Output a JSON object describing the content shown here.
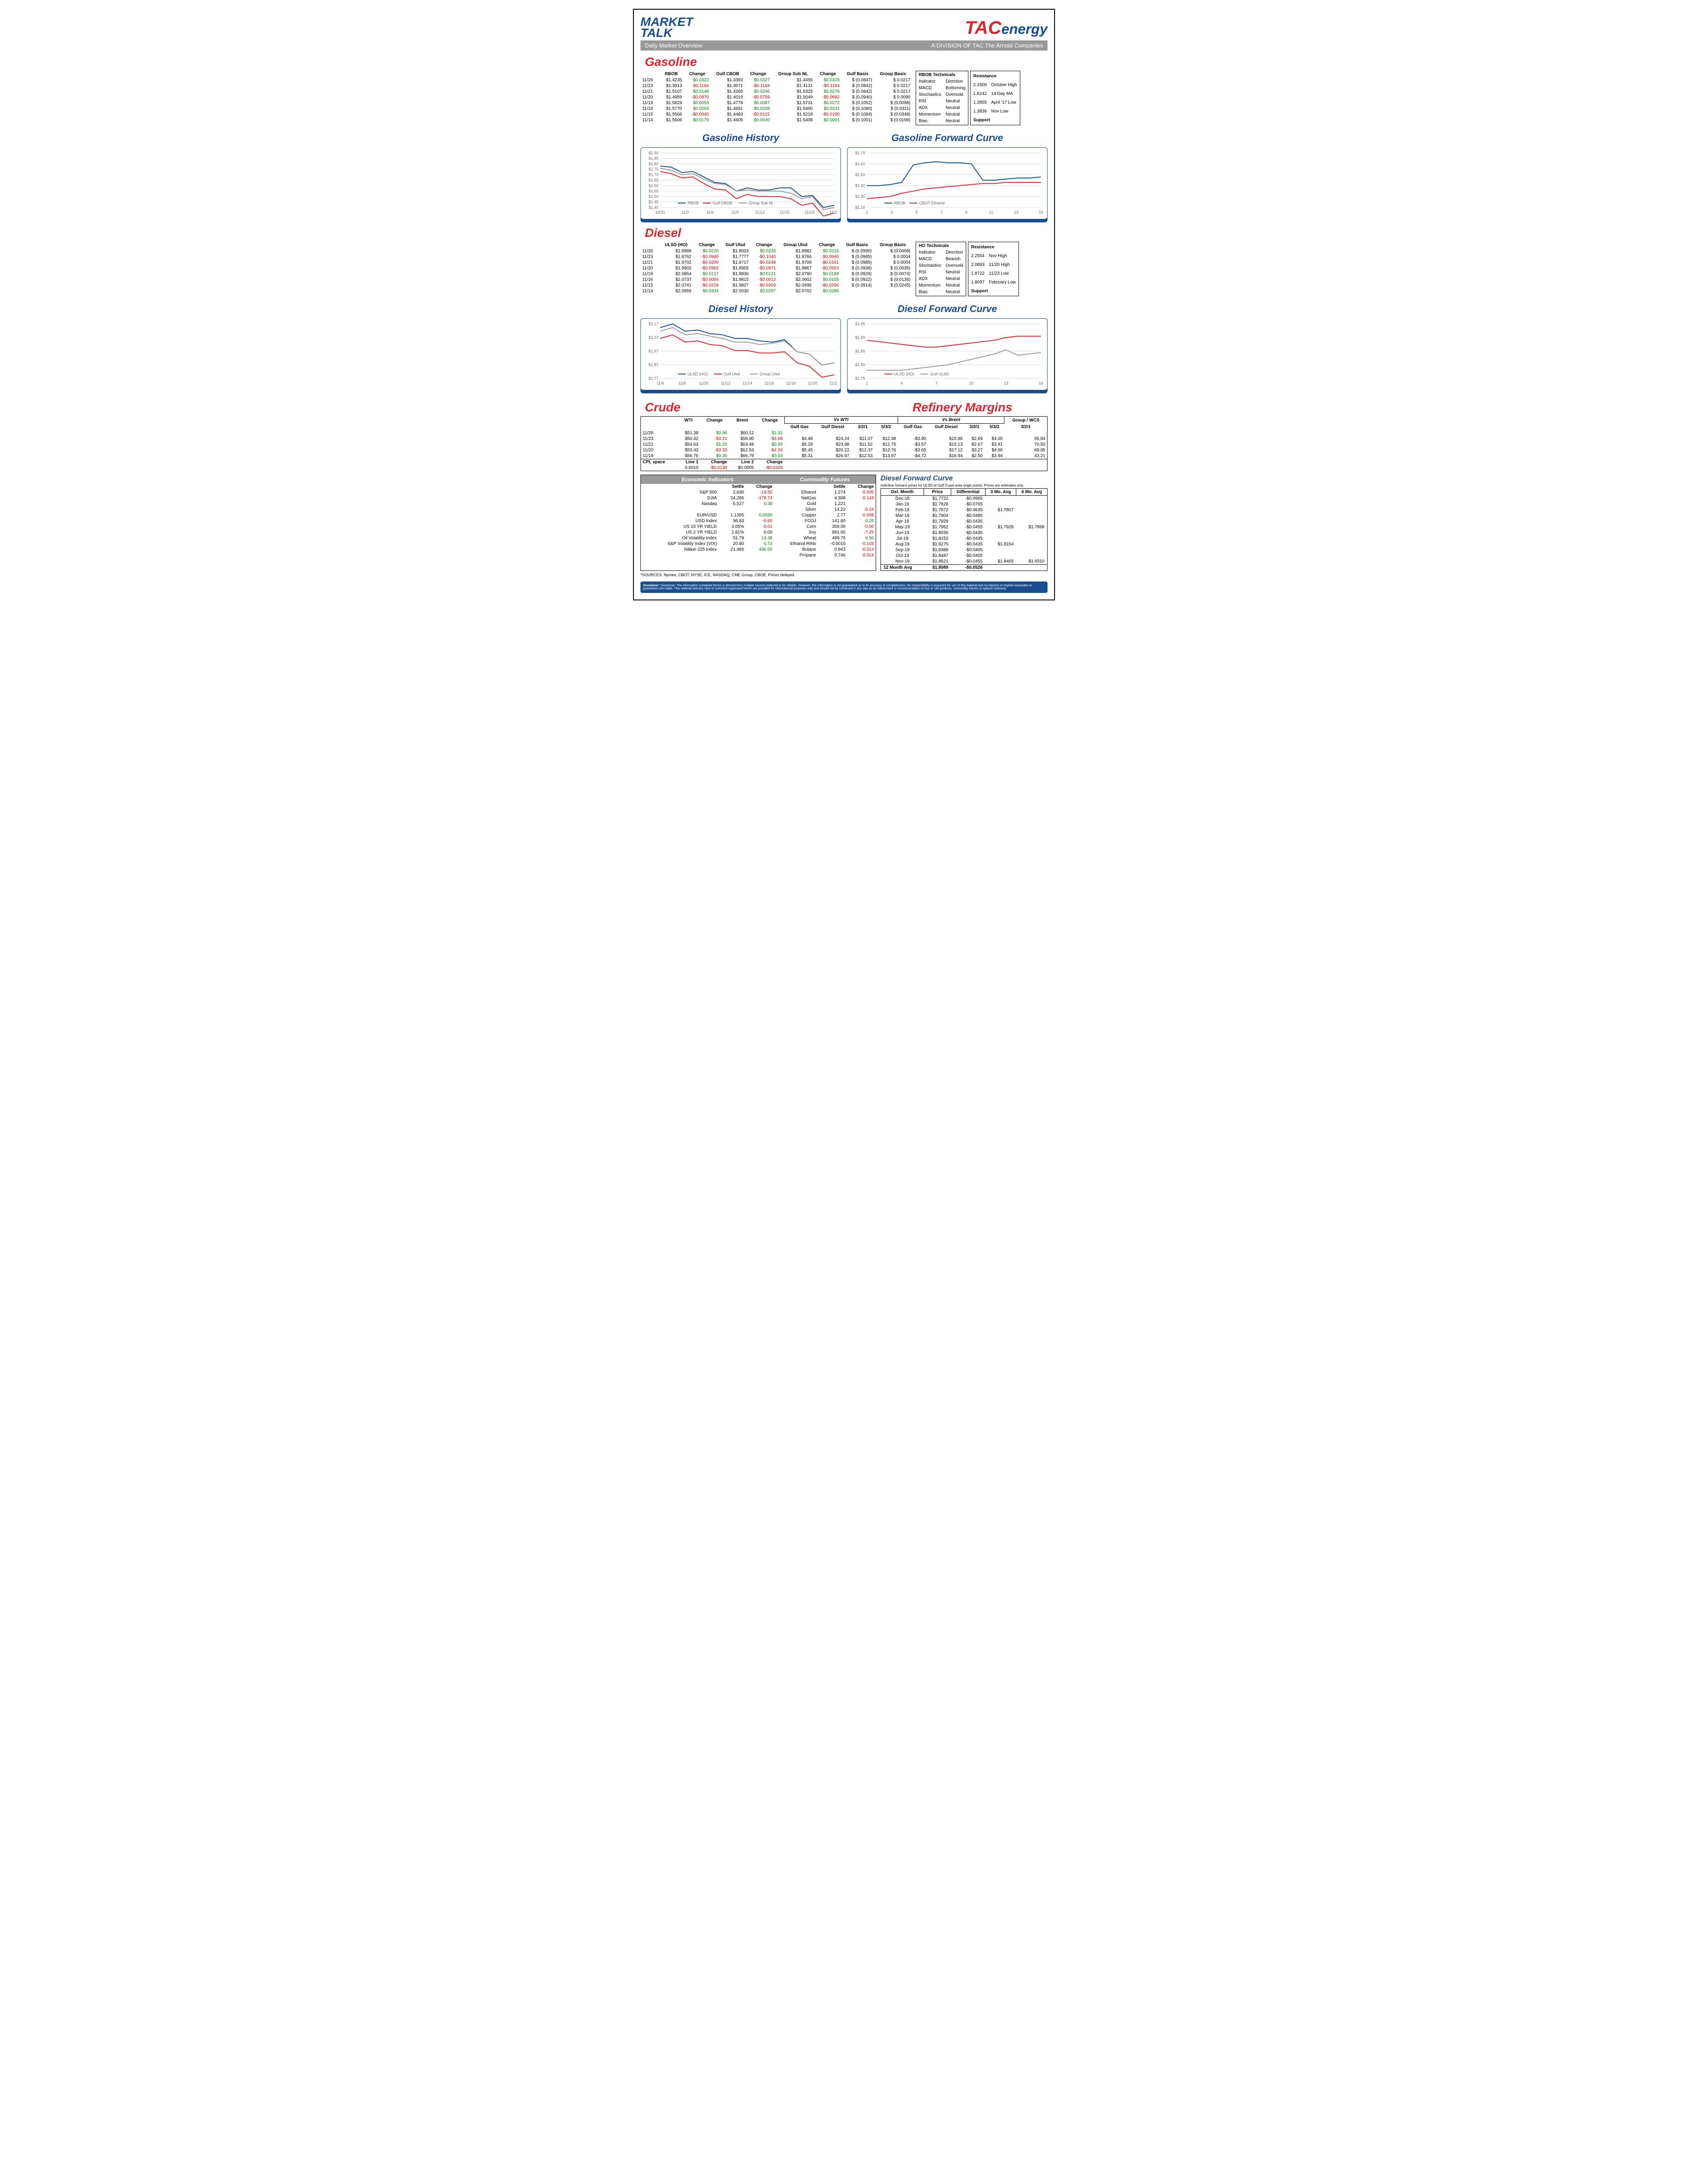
{
  "header": {
    "logo_left_l1": "MARKET",
    "logo_left_l2": "TALK",
    "logo_tac": "TAC",
    "logo_energy": "energy",
    "sub_left": "Daily Market Overview",
    "sub_right": "A DIVISION OF TAC The Arnold Companies"
  },
  "gasoline": {
    "title": "Gasoline",
    "cols": [
      "",
      "RBOB",
      "Change",
      "Gulf CBOB",
      "Change",
      "Group Sub NL",
      "Change",
      "Gulf Basis",
      "Group Basis"
    ],
    "rows": [
      [
        "11/26",
        "$1.4235",
        "$0.0322",
        "$1.3393",
        "$0.0327",
        "$1.4456",
        "$0.0325",
        "$ (0.0847)",
        "$         0.0217"
      ],
      [
        "11/23",
        "$1.3913",
        "-$0.1194",
        "$1.3071",
        "-$0.1194",
        "$1.4131",
        "-$0.1194",
        "$ (0.0842)",
        "$         0.0217"
      ],
      [
        "11/21",
        "$1.5107",
        "$0.0148",
        "$1.4265",
        "$0.0246",
        "$1.5325",
        "$0.0276",
        "$ (0.0842)",
        "$         0.0217"
      ],
      [
        "11/20",
        "$1.4959",
        "-$0.0870",
        "$1.4019",
        "-$0.0759",
        "$1.5049",
        "-$0.0682",
        "$ (0.0940)",
        "$         0.0090"
      ],
      [
        "11/19",
        "$1.5829",
        "$0.0059",
        "$1.4778",
        "$0.0087",
        "$1.5731",
        "$0.0272",
        "$ (0.1052)",
        "$       (0.0098)"
      ],
      [
        "11/16",
        "$1.5770",
        "$0.0204",
        "$1.4691",
        "$0.0208",
        "$1.5460",
        "$0.0241",
        "$ (0.1080)",
        "$       (0.0311)"
      ],
      [
        "11/15",
        "$1.5566",
        "-$0.0040",
        "$1.4483",
        "-$0.0122",
        "$1.5218",
        "-$0.0190",
        "$ (0.1084)",
        "$       (0.0348)"
      ],
      [
        "11/14",
        "$1.5606",
        "$0.0179",
        "$1.4605",
        "$0.0040",
        "$1.5408",
        "$0.0091",
        "$ (0.1001)",
        "$       (0.0198)"
      ]
    ],
    "tech_title": "RBOB Technicals",
    "tech_cols": [
      "Indicator",
      "Direction"
    ],
    "tech_rows": [
      [
        "MACD",
        "Bottoming"
      ],
      [
        "Stochastics",
        "Oversold"
      ],
      [
        "RSI",
        "Neutral"
      ],
      [
        "ADX",
        "Neutral"
      ],
      [
        "Momentum",
        "Neutral"
      ],
      [
        "Bias:",
        "Neutral"
      ]
    ],
    "rs_title": "Resistance",
    "rs_rows": [
      [
        "2.1500",
        "October High"
      ],
      [
        "1.6242",
        "14 Day MA"
      ],
      [
        "1.3955",
        "April '17 Low"
      ],
      [
        "1.3838",
        "Nov Low"
      ]
    ],
    "sp_title": "Support",
    "hist_title": "Gasoline History",
    "fwd_title": "Gasoline Forward Curve",
    "hist_chart": {
      "ylabels": [
        "$1.90",
        "$1.85",
        "$1.80",
        "$1.75",
        "$1.70",
        "$1.65",
        "$1.60",
        "$1.55",
        "$1.50",
        "$1.45",
        "$1.40"
      ],
      "xlabels": [
        "10/31",
        "11/3",
        "11/6",
        "11/9",
        "11/12",
        "11/15",
        "11/18",
        "11/21"
      ],
      "legend": [
        "RBOB",
        "Gulf CBOB",
        "Group Sub NL"
      ],
      "series_blue": [
        1.78,
        1.77,
        1.72,
        1.73,
        1.68,
        1.63,
        1.62,
        1.55,
        1.58,
        1.56,
        1.56,
        1.58,
        1.58,
        1.5,
        1.51,
        1.4,
        1.42
      ],
      "series_red": [
        1.73,
        1.71,
        1.67,
        1.68,
        1.62,
        1.57,
        1.56,
        1.48,
        1.52,
        1.5,
        1.5,
        1.5,
        1.48,
        1.42,
        1.44,
        1.32,
        1.35
      ],
      "series_gray": [
        1.76,
        1.74,
        1.7,
        1.71,
        1.66,
        1.62,
        1.61,
        1.55,
        1.56,
        1.55,
        1.55,
        1.55,
        1.53,
        1.48,
        1.5,
        1.38,
        1.4
      ],
      "ymin": 1.4,
      "ymax": 1.9
    },
    "fwd_chart": {
      "ylabels": [
        "$1.70",
        "$1.60",
        "$1.50",
        "$1.40",
        "$1.30",
        "$1.20"
      ],
      "xlabels": [
        "1",
        "3",
        "5",
        "7",
        "9",
        "11",
        "13",
        "15"
      ],
      "legend": [
        "RBOB",
        "CBOT Ethanol"
      ],
      "series_blue": [
        1.4,
        1.4,
        1.41,
        1.43,
        1.59,
        1.61,
        1.62,
        1.61,
        1.61,
        1.6,
        1.45,
        1.45,
        1.46,
        1.47,
        1.47,
        1.48
      ],
      "series_red": [
        1.28,
        1.29,
        1.3,
        1.33,
        1.35,
        1.37,
        1.38,
        1.39,
        1.4,
        1.41,
        1.42,
        1.42,
        1.43,
        1.43,
        1.43,
        1.43
      ],
      "ymin": 1.2,
      "ymax": 1.7
    }
  },
  "diesel": {
    "title": "Diesel",
    "cols": [
      "",
      "ULSD (HO)",
      "Change",
      "Gulf Ulsd",
      "Change",
      "Group Ulsd",
      "Change",
      "Gulf Basis",
      "Group Basis"
    ],
    "rows": [
      [
        "11/26",
        "$1.8988",
        "$0.0226",
        "$1.8003",
        "$0.0226",
        "$1.8982",
        "$0.0216",
        "$ (0.0990)",
        "$       (0.0008)"
      ],
      [
        "11/23",
        "$1.8762",
        "-$0.0940",
        "$1.7777",
        "-$0.1040",
        "$1.8766",
        "-$0.0940",
        "$ (0.0985)",
        "$         0.0004"
      ],
      [
        "11/21",
        "$1.9702",
        "-$0.0200",
        "$1.8717",
        "-$0.0248",
        "$1.9706",
        "-$0.0161",
        "$ (0.0985)",
        "$         0.0004"
      ],
      [
        "11/20",
        "$1.9902",
        "-$0.0962",
        "$1.8965",
        "-$0.0971",
        "$1.9867",
        "-$0.0923",
        "$ (0.0938)",
        "$       (0.0035)"
      ],
      [
        "11/19",
        "$2.0864",
        "$0.0127",
        "$1.9936",
        "$0.0121",
        "$2.0790",
        "$0.0189",
        "$ (0.0928)",
        "$       (0.0074)"
      ],
      [
        "11/16",
        "$2.0737",
        "-$0.0004",
        "$1.9815",
        "-$0.0012",
        "$2.0602",
        "$0.0105",
        "$ (0.0922)",
        "$       (0.0136)"
      ],
      [
        "11/15",
        "$2.0741",
        "-$0.0218",
        "$1.9827",
        "-$0.0203",
        "$2.0496",
        "-$0.0206",
        "$ (0.0914)",
        "$       (0.0245)"
      ],
      [
        "11/14",
        "$2.0959",
        "$0.0334",
        "$2.0030",
        "$0.0297",
        "$2.0702",
        "$0.0286",
        "",
        ""
      ]
    ],
    "tech_title": "HO Technicals",
    "tech_rows": [
      [
        "MACD",
        "Bearish"
      ],
      [
        "Stochastics",
        "Oversold"
      ],
      [
        "RSI",
        "Neutral"
      ],
      [
        "ADX",
        "Neutral"
      ],
      [
        "Momentum",
        "Neutral"
      ],
      [
        "Bias:",
        "Neutral"
      ]
    ],
    "rs_rows": [
      [
        "2.2554",
        "Nov High"
      ],
      [
        "2.0893",
        "11/20 High"
      ],
      [
        "1.8722",
        "11/23 Low"
      ],
      [
        "1.8097",
        "February Low"
      ]
    ],
    "hist_title": "Diesel History",
    "fwd_title": "Diesel Forward Curve",
    "hist_chart": {
      "ylabels": [
        "$2.17",
        "$2.07",
        "$1.97",
        "$1.87",
        "$1.77"
      ],
      "xlabels": [
        "11/6",
        "11/8",
        "11/10",
        "11/12",
        "11/14",
        "11/16",
        "11/18",
        "11/20",
        "11/22"
      ],
      "legend": [
        "ULSD (HO)",
        "Gulf Ulsd",
        "Group Ulsd"
      ],
      "series_blue": [
        2.19,
        2.22,
        2.16,
        2.17,
        2.14,
        2.13,
        2.1,
        2.1,
        2.08,
        2.07,
        2.09,
        1.99,
        1.97,
        1.88,
        1.9
      ],
      "series_red": [
        2.1,
        2.13,
        2.07,
        2.08,
        2.05,
        2.04,
        2.0,
        2.0,
        1.98,
        1.98,
        1.99,
        1.9,
        1.87,
        1.78,
        1.8
      ],
      "series_gray": [
        2.16,
        2.19,
        2.13,
        2.14,
        2.12,
        2.1,
        2.07,
        2.07,
        2.05,
        2.06,
        2.08,
        1.99,
        1.97,
        1.88,
        1.9
      ],
      "ymin": 1.77,
      "ymax": 2.22
    },
    "fwd_chart": {
      "ylabels": [
        "$1.95",
        "$1.90",
        "$1.85",
        "$1.80",
        "$1.75"
      ],
      "xlabels": [
        "1",
        "4",
        "7",
        "10",
        "13",
        "16"
      ],
      "legend": [
        "ULSD (HO)",
        "Gulf ULSD"
      ],
      "series_red": [
        1.89,
        1.885,
        1.88,
        1.875,
        1.87,
        1.865,
        1.865,
        1.87,
        1.875,
        1.88,
        1.885,
        1.89,
        1.9,
        1.905,
        1.905,
        1.905
      ],
      "series_gray": [
        1.78,
        1.78,
        1.78,
        1.78,
        1.785,
        1.79,
        1.795,
        1.8,
        1.81,
        1.82,
        1.83,
        1.84,
        1.855,
        1.835,
        1.84,
        1.845
      ],
      "ymin": 1.75,
      "ymax": 1.95
    }
  },
  "crude": {
    "title": "Crude",
    "ref_title": "Refinery Margins",
    "cols": [
      "",
      "WTI",
      "Change",
      "Brent",
      "Change"
    ],
    "rows": [
      [
        "11/26",
        "$51.38",
        "$0.96",
        "$60.12",
        "$1.32"
      ],
      [
        "11/23",
        "$50.42",
        "-$4.21",
        "$58.80",
        "-$4.68"
      ],
      [
        "11/21",
        "$54.63",
        "$1.20",
        "$63.48",
        "$0.95"
      ],
      [
        "11/20",
        "$53.43",
        "-$3.33",
        "$62.53",
        "-$4.26"
      ],
      [
        "11/19",
        "$56.76",
        "$0.30",
        "$66.79",
        "$0.03"
      ]
    ],
    "cpl_row": [
      "CPL space",
      "Line 1",
      "Change",
      "Line 2",
      "Change"
    ],
    "cpl_vals": [
      "",
      "0.0010",
      "-$0.0138",
      "$0.0005",
      "-$0.0328"
    ],
    "vs_wti_h": "Vs WTI",
    "vs_brent_h": "Vs Brent",
    "group_wcs": "Group / WCS",
    "ref_cols": [
      "Gulf Gas",
      "Gulf Diesel",
      "3/2/1",
      "5/3/2",
      "Gulf Gas",
      "Gulf Diesel",
      "3/2/1",
      "5/3/2",
      "3/2/1"
    ],
    "ref_rows": [
      [
        "",
        "",
        "",
        "",
        "",
        "",
        "",
        "",
        ""
      ],
      [
        "$4.48",
        "$24.24",
        "$11.07",
        "$12.38",
        "-$3.90",
        "$15.86",
        "$2.69",
        "$4.00",
        "65.84"
      ],
      [
        "$5.28",
        "$23.98",
        "$11.52",
        "$12.76",
        "-$3.57",
        "$15.13",
        "$2.67",
        "$3.91",
        "70.50"
      ],
      [
        "$5.45",
        "$26.22",
        "$12.37",
        "$13.76",
        "-$3.65",
        "$17.12",
        "$3.27",
        "$4.66",
        "69.95"
      ],
      [
        "$5.31",
        "$26.97",
        "$12.53",
        "$13.97",
        "-$4.72",
        "$16.94",
        "$2.50",
        "$3.94",
        "43.21"
      ]
    ]
  },
  "econ": {
    "title": "Economic Indicators",
    "cols": [
      "",
      "Settle",
      "Change"
    ],
    "rows": [
      [
        "S&P 500",
        "2,630",
        "-19.50"
      ],
      [
        "DJIA",
        "24,286",
        "-178.74"
      ],
      [
        "Nasdaq",
        "6,527",
        "0.38"
      ],
      [
        "",
        "",
        ""
      ],
      [
        "EUR/USD",
        "1.1355",
        "0.0030"
      ],
      [
        "USD Index",
        "96.83",
        "-0.60"
      ],
      [
        "US 10 YR YIELD",
        "3.05%",
        "-0.01"
      ],
      [
        "US 2 YR YIELD",
        "2.81%",
        "0.00"
      ],
      [
        "Oil Volatility Index",
        "51.79",
        "13.38"
      ],
      [
        "S&P Volatility Index (VIX)",
        "20.80",
        "0.72"
      ],
      [
        "Nikkei 225 Index",
        "21,485",
        "490.00"
      ]
    ]
  },
  "comm": {
    "title": "Commodity Futures",
    "cols": [
      "",
      "Settle",
      "Change"
    ],
    "rows": [
      [
        "Ethanol",
        "1.274",
        "-0.005"
      ],
      [
        "NatGas",
        "4.308",
        "-0.143"
      ],
      [
        "Gold",
        "1,221",
        ""
      ],
      [
        "Silver",
        "14.22",
        "-0.16"
      ],
      [
        "Copper",
        "2.77",
        "-0.008"
      ],
      [
        "FCOJ",
        "141.60",
        "0.25"
      ],
      [
        "Corn",
        "359.00",
        "-0.50"
      ],
      [
        "Soy",
        "881.00",
        "-7.25"
      ],
      [
        "Wheat",
        "499.75",
        "6.50"
      ],
      [
        "Ethanol RINs",
        "-0.0010",
        "-0.103"
      ],
      [
        "Butane",
        "0.843",
        "-0.014"
      ],
      [
        "Propane",
        "0.746",
        "-0.014"
      ]
    ]
  },
  "dfc": {
    "title": "Diesel Forward Curve",
    "sub": "Indicitive forward prices for ULSD at Gulf Coast area origin points.  Prices are estimates only.",
    "cols": [
      "Del. Month",
      "Price",
      "Differential",
      "3 Mo. Avg",
      "6 Mo. Avg"
    ],
    "rows": [
      [
        "Dec-18",
        "$1.7722",
        "-$0.0965",
        "",
        ""
      ],
      [
        "Jan-19",
        "$1.7828",
        "-$0.0765",
        "",
        ""
      ],
      [
        "Feb-19",
        "$1.7872",
        "-$0.0635",
        "$1.7807",
        ""
      ],
      [
        "Mar-19",
        "$1.7904",
        "-$0.0485",
        "",
        ""
      ],
      [
        "Apr-19",
        "$1.7928",
        "-$0.0435",
        "",
        ""
      ],
      [
        "May-19",
        "$1.7952",
        "-$0.0455",
        "$1.7928",
        "$1.7868"
      ],
      [
        "Jun-19",
        "$1.8036",
        "-$0.0435",
        "",
        ""
      ],
      [
        "Jul-19",
        "$1.8152",
        "-$0.0435",
        "",
        ""
      ],
      [
        "Aug-19",
        "$1.8275",
        "-$0.0435",
        "$1.8154",
        ""
      ],
      [
        "Sep-19",
        "$1.8388",
        "-$0.0405",
        "",
        ""
      ],
      [
        "Oct-19",
        "$1.8487",
        "-$0.0405",
        "",
        ""
      ],
      [
        "Nov-19",
        "$1.8521",
        "-$0.0455",
        "$1.8465",
        "$1.8310"
      ]
    ],
    "footer": [
      "12 Month Avg",
      "$1.8089",
      "-$0.0526",
      "",
      ""
    ]
  },
  "sources": "*SOURCES: Nymex, CBOT, NYSE, ICE, NASDAQ, CME Group, CBOE.   Prices delayed.",
  "disclaimer": "Disclaimer: The information contained herein is derived from multiple sources believed to be reliable.  However, this information is not  guaranteed as to its accuracy or completeness. No responsibility is assumed for use of this material and no express or implied warranties or guarantees are made. This material and any view or comment expressed herein are provided for informational purposes only and should not be construed in any way as an inducement or recommendation to buy or sell products, commodity futures or options contracts."
}
